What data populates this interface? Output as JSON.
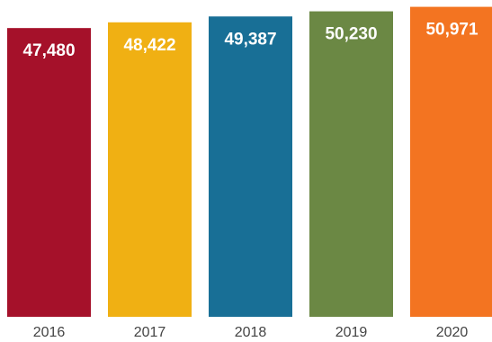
{
  "chart_data": {
    "type": "bar",
    "categories": [
      "2016",
      "2017",
      "2018",
      "2019",
      "2020"
    ],
    "values": [
      47480,
      48422,
      49387,
      50230,
      50971
    ],
    "value_labels": [
      "47,480",
      "48,422",
      "49,387",
      "50,230",
      "50,971"
    ],
    "colors": [
      "#a5112a",
      "#f0b013",
      "#186f96",
      "#6b8844",
      "#f37421"
    ],
    "ylim": [
      0,
      51500
    ],
    "title": "",
    "xlabel": "",
    "ylabel": "",
    "grid": false,
    "legend": "none"
  }
}
